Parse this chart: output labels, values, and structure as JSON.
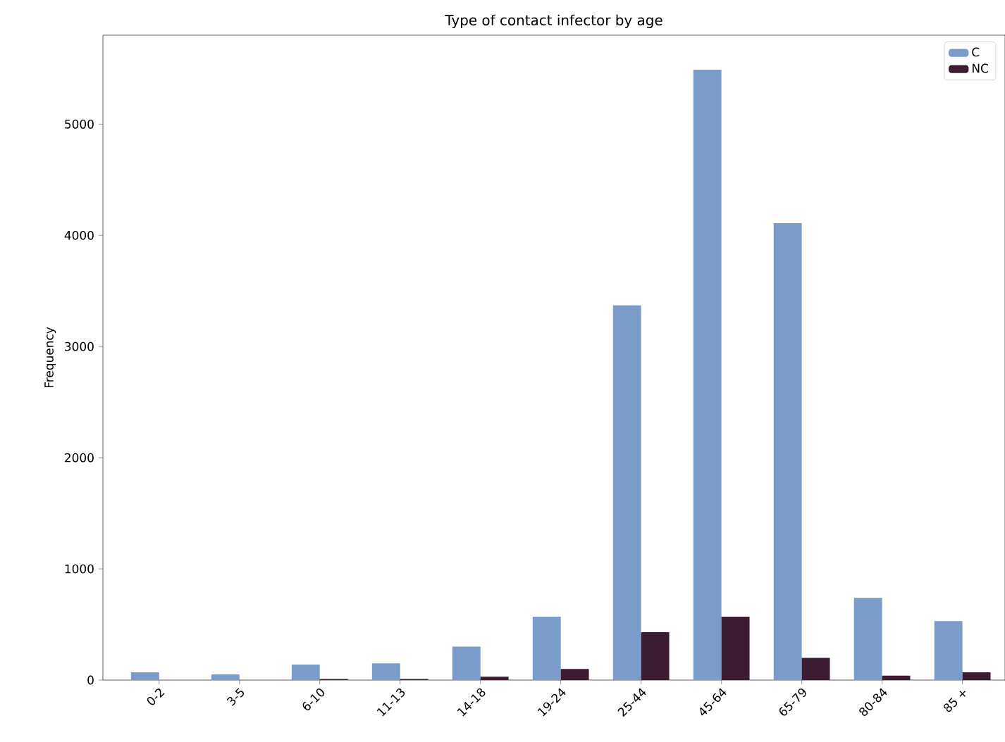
{
  "chart_data": {
    "type": "bar",
    "title": "Type of contact infector by age",
    "ylabel": "Frequency",
    "categories": [
      "0-2",
      "3-5",
      "6-10",
      "11-13",
      "14-18",
      "19-24",
      "25-44",
      "45-64",
      "65-79",
      "80-84",
      "85 +"
    ],
    "series": [
      {
        "name": "C",
        "color": "#7b9cc8",
        "values": [
          70,
          50,
          140,
          150,
          300,
          570,
          3370,
          5490,
          4110,
          740,
          530
        ]
      },
      {
        "name": "NC",
        "color": "#3b1c32",
        "values": [
          0,
          0,
          10,
          10,
          30,
          100,
          430,
          570,
          200,
          40,
          70
        ]
      }
    ],
    "ylim": [
      0,
      5800
    ],
    "yticks": [
      0,
      1000,
      2000,
      3000,
      4000,
      5000
    ],
    "grid": false,
    "legend": "top right"
  }
}
